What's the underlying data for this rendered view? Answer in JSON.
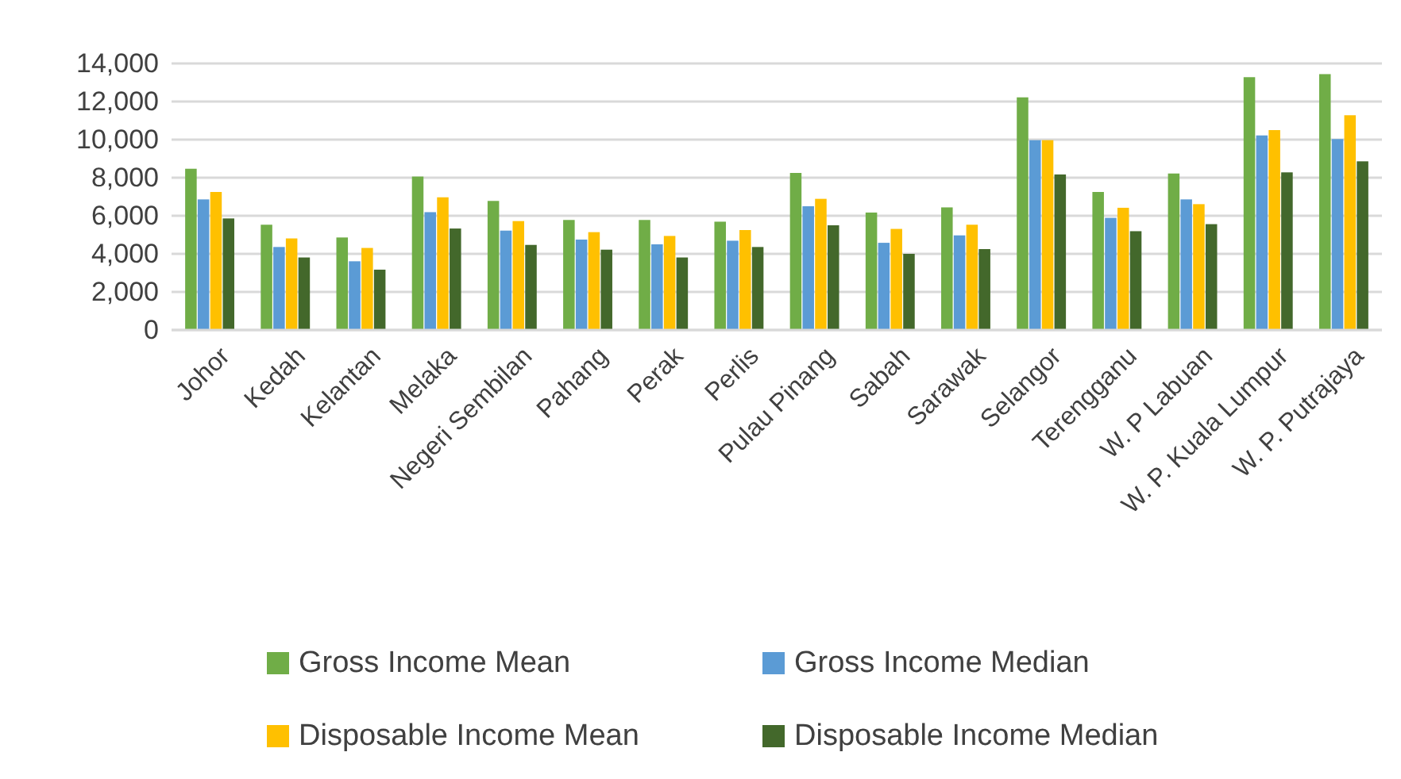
{
  "chart_data": {
    "type": "bar",
    "categories": [
      "Johor",
      "Kedah",
      "Kelantan",
      "Melaka",
      "Negeri Sembilan",
      "Pahang",
      "Perak",
      "Perlis",
      "Pulau Pinang",
      "Sabah",
      "Sarawak",
      "Selangor",
      "Terengganu",
      "W. P Labuan",
      "W. P. Kuala Lumpur",
      "W. P. Putrajaya"
    ],
    "series": [
      {
        "name": "Gross Income Mean",
        "color": "#70ad47",
        "values": [
          8470,
          5530,
          4860,
          8060,
          6780,
          5780,
          5780,
          5690,
          8250,
          6170,
          6440,
          12220,
          7250,
          8220,
          13280,
          13440
        ]
      },
      {
        "name": "Gross Income Median",
        "color": "#5b9bd5",
        "values": [
          6860,
          4360,
          3610,
          6190,
          5220,
          4750,
          4500,
          4690,
          6500,
          4580,
          4970,
          9970,
          5890,
          6860,
          10220,
          10030
        ]
      },
      {
        "name": "Disposable Income Mean",
        "color": "#ffc000",
        "values": [
          7250,
          4810,
          4310,
          6970,
          5720,
          5140,
          4940,
          5250,
          6890,
          5310,
          5530,
          9970,
          6420,
          6610,
          10500,
          11280
        ]
      },
      {
        "name": "Disposable Income Median",
        "color": "#43682b",
        "values": [
          5860,
          3810,
          3170,
          5330,
          4470,
          4220,
          3810,
          4360,
          5500,
          4000,
          4250,
          8170,
          5190,
          5560,
          8280,
          8860
        ]
      }
    ],
    "ylim": [
      0,
      14000
    ],
    "yticks": [
      {
        "value": 0,
        "label": "0"
      },
      {
        "value": 2000,
        "label": "2,000"
      },
      {
        "value": 4000,
        "label": "4,000"
      },
      {
        "value": 6000,
        "label": "6,000"
      },
      {
        "value": 8000,
        "label": "8,000"
      },
      {
        "value": 10000,
        "label": "10,000"
      },
      {
        "value": 12000,
        "label": "12,000"
      },
      {
        "value": 14000,
        "label": "14,000"
      }
    ],
    "grid": "y",
    "legend": "bottom"
  }
}
